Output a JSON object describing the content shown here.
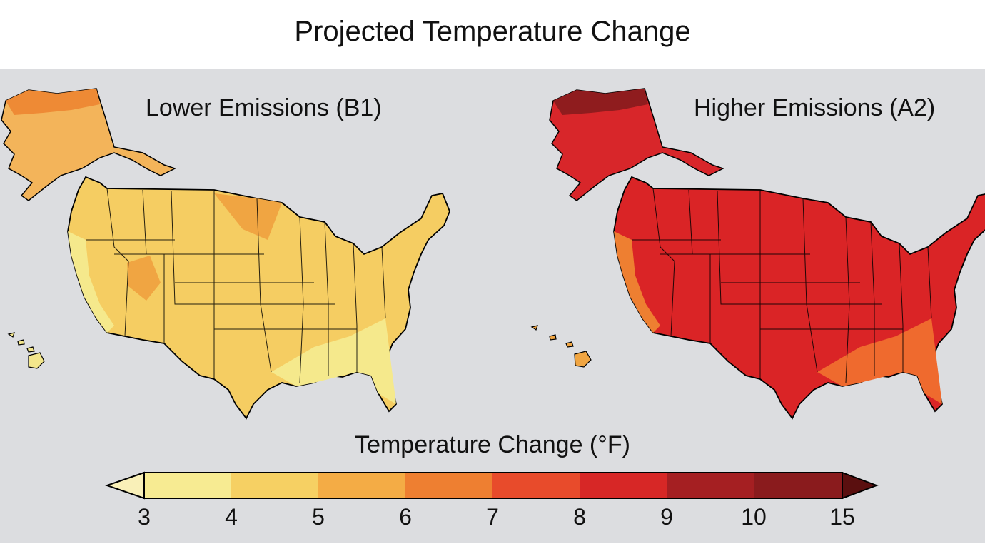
{
  "title": "Projected Temperature Change",
  "panels": [
    {
      "label": "Lower Emissions (B1)",
      "base_color": "#f6d264",
      "fill_color": "#f3a73d"
    },
    {
      "label": "Higher Emissions (A2)",
      "base_color": "#dd2626",
      "fill_color": "#e8462c"
    }
  ],
  "legend": {
    "title": "Temperature Change (°F)",
    "ticks": [
      "3",
      "4",
      "5",
      "6",
      "7",
      "8",
      "9",
      "10",
      "15"
    ],
    "colors": [
      "#f7eb92",
      "#f6d063",
      "#f4ac45",
      "#ee7f31",
      "#e84b2b",
      "#d72726",
      "#a51f22",
      "#8a1b1d"
    ],
    "low_arrow_color": "#f9f0b8",
    "high_arrow_color": "#5a0f0f"
  }
}
